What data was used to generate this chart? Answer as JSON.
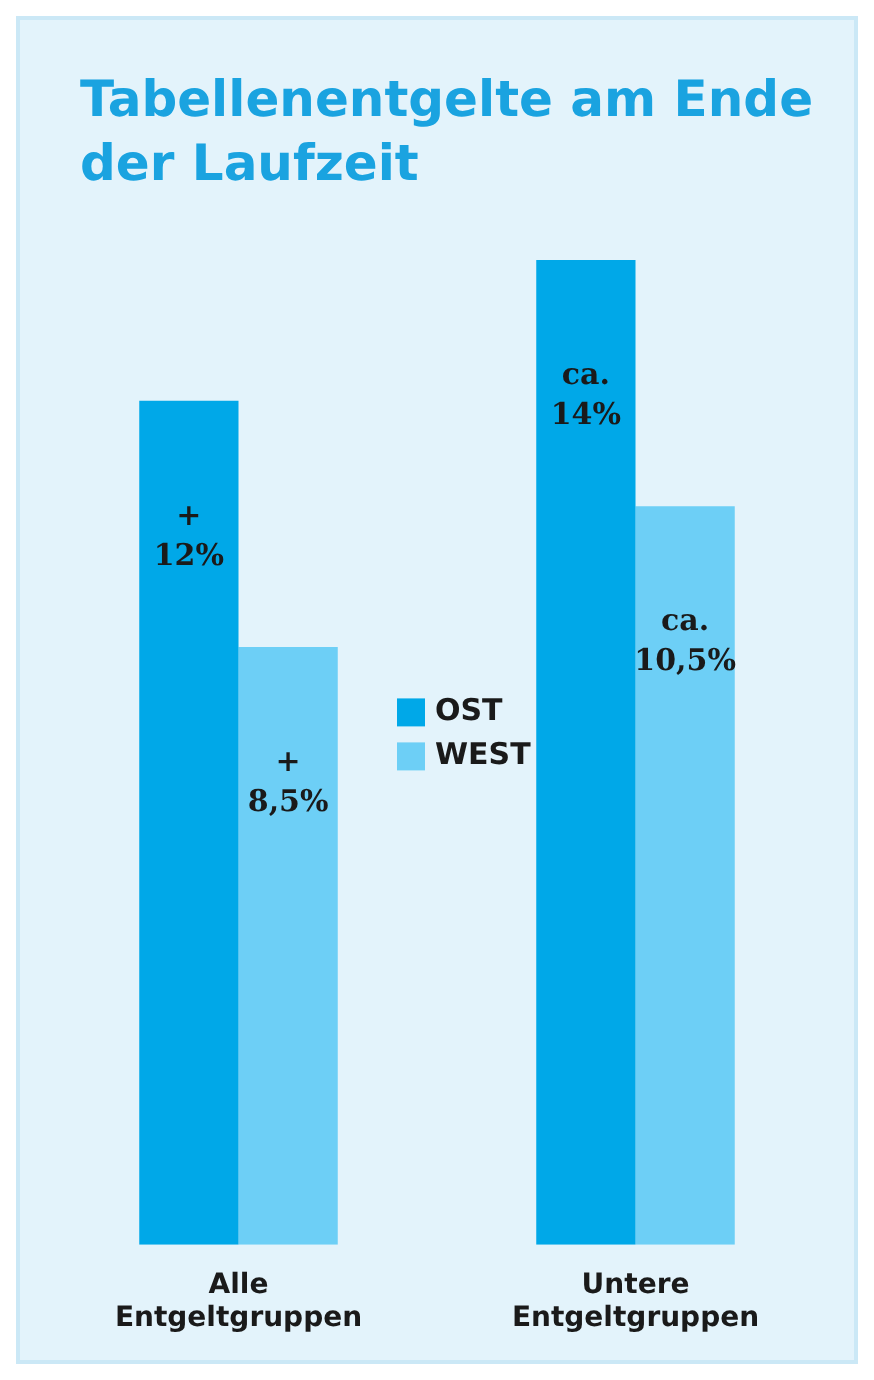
{
  "chart_data": {
    "type": "bar",
    "title": "Tabellenentgelte am Ende der Laufzeit",
    "tick_labels": "x",
    "categories": [
      "Alle Entgeltgruppen",
      "Untere Entgeltgruppen"
    ],
    "series": [
      {
        "name": "OST",
        "color": "#00a8e8",
        "values": [
          12,
          14
        ],
        "value_labels": [
          "+ 12%",
          "ca. 14%"
        ]
      },
      {
        "name": "WEST",
        "color": "#6dcff6",
        "values": [
          8.5,
          10.5
        ],
        "value_labels": [
          "+ 8,5%",
          "ca. 10,5%"
        ]
      }
    ],
    "legend": "center",
    "grid": false
  }
}
